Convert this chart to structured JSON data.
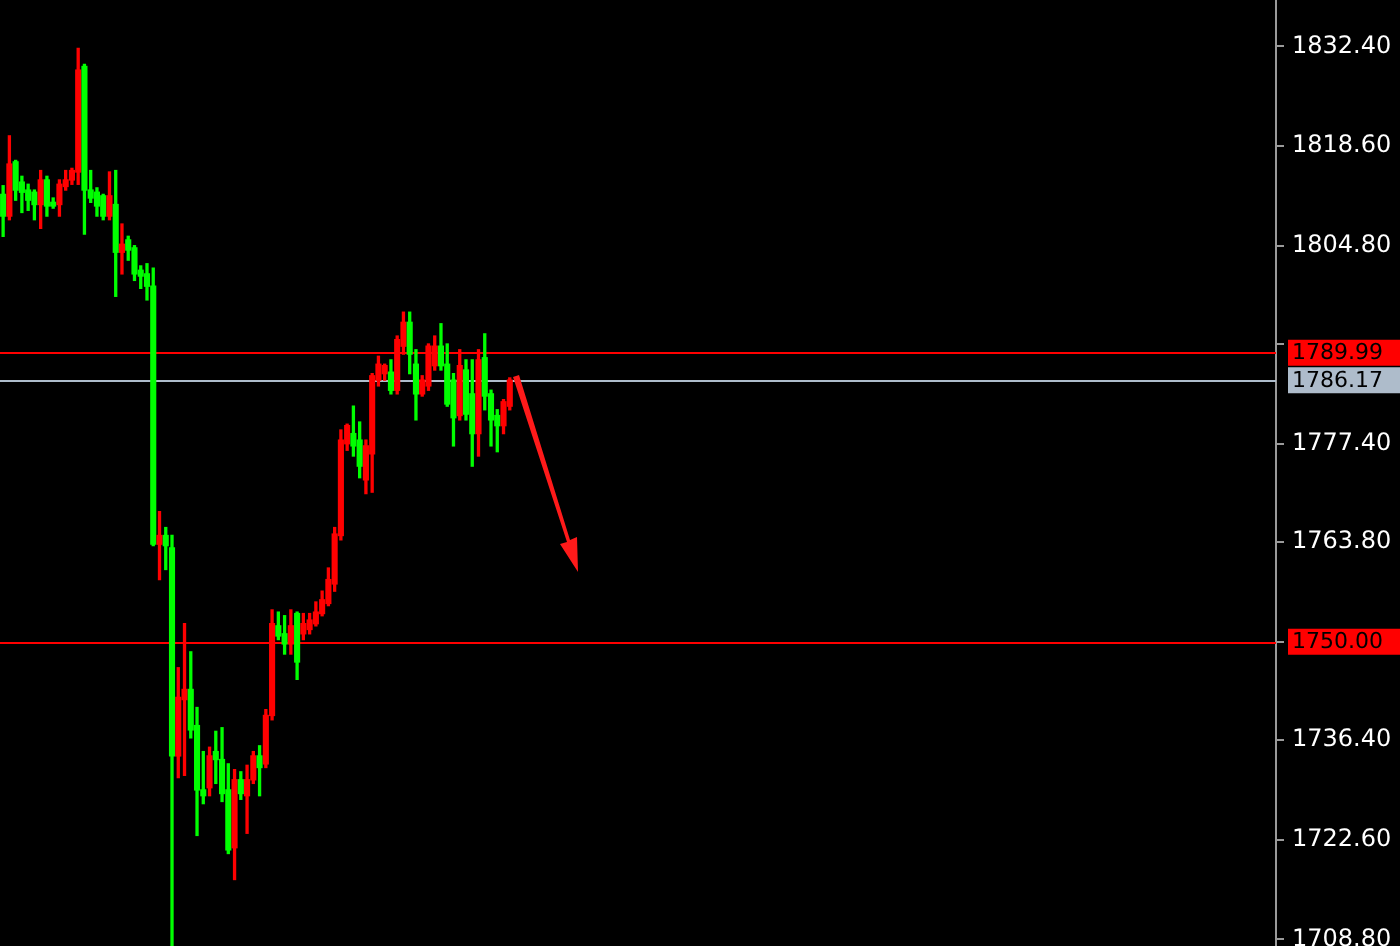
{
  "chart_data": {
    "type": "candlestick",
    "categories": [
      null,
      null,
      null,
      null,
      null,
      null,
      null,
      null,
      null,
      null,
      null,
      null,
      null,
      null,
      null,
      null,
      null,
      null,
      null,
      null,
      null,
      null,
      null,
      null,
      null,
      null,
      null,
      null,
      null,
      null,
      null,
      null,
      null,
      null,
      null,
      null,
      null,
      null,
      null,
      null,
      null,
      null,
      null,
      null,
      null,
      null,
      null,
      null,
      null,
      null,
      null,
      null,
      null,
      null,
      null,
      null,
      null,
      null,
      null,
      null,
      null,
      null,
      null,
      null,
      null,
      null,
      null,
      null,
      null,
      null,
      null,
      null,
      null,
      null,
      null,
      null,
      null,
      null,
      null,
      null,
      null,
      null,
      null,
      null,
      null,
      null,
      null,
      null,
      null,
      null,
      null,
      null,
      null,
      null,
      null,
      null,
      null,
      null,
      null,
      null,
      null,
      null,
      null,
      null,
      null,
      null,
      null,
      null,
      null,
      null,
      null,
      null,
      null,
      null,
      null,
      null,
      null,
      null,
      null,
      null,
      null,
      null,
      null,
      null,
      null,
      null,
      null,
      null,
      null,
      null,
      null,
      null,
      null,
      null,
      null,
      null,
      null,
      null,
      null,
      null,
      null,
      null,
      null,
      null,
      null,
      null,
      null,
      null,
      null,
      null,
      null,
      null,
      null,
      null,
      null,
      null,
      null,
      null,
      null,
      null,
      null,
      null,
      null,
      null,
      null,
      null,
      null,
      null,
      null,
      null,
      null,
      null,
      null,
      null,
      null,
      null,
      null,
      null,
      null,
      null,
      null,
      null,
      null,
      null,
      null,
      null,
      null,
      null,
      null,
      null,
      null,
      null,
      null,
      null,
      null,
      null,
      null,
      null,
      null,
      null,
      null,
      null,
      null,
      null
    ],
    "ohlc": [
      [
        1811.9,
        1813.1,
        1806.1,
        1808.9
      ],
      [
        1808.9,
        1820.0,
        1808.4,
        1816.1
      ],
      [
        1816.4,
        1816.6,
        1811.1,
        1812.5
      ],
      [
        1813.6,
        1814.4,
        1809.4,
        1812.2
      ],
      [
        1812.5,
        1813.3,
        1809.7,
        1811.1
      ],
      [
        1812.2,
        1812.5,
        1808.4,
        1810.5
      ],
      [
        1810.5,
        1815.2,
        1807.2,
        1813.9
      ],
      [
        1813.9,
        1814.4,
        1808.9,
        1810.3
      ],
      [
        1810.8,
        1811.4,
        1810.0,
        1810.3
      ],
      [
        1810.5,
        1813.9,
        1808.9,
        1813.3
      ],
      [
        1813.0,
        1815.2,
        1812.5,
        1813.9
      ],
      [
        1813.9,
        1815.5,
        1813.3,
        1815.2
      ],
      [
        1815.0,
        1832.1,
        1813.3,
        1829.1
      ],
      [
        1829.6,
        1829.9,
        1806.4,
        1812.5
      ],
      [
        1812.5,
        1815.2,
        1810.8,
        1811.4
      ],
      [
        1812.2,
        1812.8,
        1808.9,
        1810.3
      ],
      [
        1811.7,
        1811.9,
        1808.4,
        1808.9
      ],
      [
        1808.9,
        1815.0,
        1808.4,
        1811.7
      ],
      [
        1810.5,
        1815.2,
        1797.8,
        1803.9
      ],
      [
        1803.9,
        1807.8,
        1800.9,
        1805.0
      ],
      [
        1805.6,
        1806.1,
        1802.8,
        1804.2
      ],
      [
        1804.5,
        1804.8,
        1800.0,
        1800.9
      ],
      [
        1801.4,
        1802.0,
        1798.9,
        1800.6
      ],
      [
        1800.9,
        1802.3,
        1797.3,
        1799.2
      ],
      [
        1799.2,
        1801.7,
        1763.3,
        1763.5
      ],
      [
        1763.5,
        1768.0,
        1758.6,
        1764.7
      ],
      [
        1764.7,
        1765.8,
        1760.0,
        1763.3
      ],
      [
        1763.0,
        1764.7,
        1708.0,
        1734.2
      ],
      [
        1734.2,
        1746.4,
        1731.2,
        1742.3
      ],
      [
        1742.0,
        1752.5,
        1731.5,
        1743.4
      ],
      [
        1743.4,
        1748.6,
        1736.7,
        1737.8
      ],
      [
        1738.4,
        1740.9,
        1723.2,
        1729.5
      ],
      [
        1729.5,
        1734.8,
        1727.6,
        1728.7
      ],
      [
        1729.8,
        1735.4,
        1728.7,
        1734.2
      ],
      [
        1734.8,
        1737.6,
        1730.4,
        1733.7
      ],
      [
        1733.7,
        1738.1,
        1727.9,
        1729.0
      ],
      [
        1729.5,
        1733.1,
        1720.7,
        1721.2
      ],
      [
        1721.5,
        1732.3,
        1717.1,
        1730.9
      ],
      [
        1730.9,
        1732.0,
        1728.2,
        1729.0
      ],
      [
        1728.7,
        1732.9,
        1723.5,
        1730.9
      ],
      [
        1730.9,
        1734.8,
        1730.4,
        1734.2
      ],
      [
        1734.2,
        1735.6,
        1728.7,
        1732.6
      ],
      [
        1733.1,
        1740.6,
        1732.6,
        1739.8
      ],
      [
        1739.8,
        1754.4,
        1739.2,
        1752.5
      ],
      [
        1752.2,
        1754.1,
        1750.3,
        1750.8
      ],
      [
        1751.1,
        1753.6,
        1748.3,
        1749.7
      ],
      [
        1749.7,
        1754.4,
        1748.3,
        1752.2
      ],
      [
        1753.9,
        1754.1,
        1744.8,
        1747.2
      ],
      [
        1751.1,
        1753.9,
        1750.3,
        1752.5
      ],
      [
        1751.7,
        1753.9,
        1751.1,
        1753.0
      ],
      [
        1752.5,
        1755.5,
        1752.2,
        1754.1
      ],
      [
        1753.9,
        1757.0,
        1753.6,
        1755.8
      ],
      [
        1755.3,
        1760.2,
        1755.0,
        1758.6
      ],
      [
        1758.0,
        1765.8,
        1757.0,
        1764.9
      ],
      [
        1764.7,
        1779.3,
        1764.1,
        1777.9
      ],
      [
        1777.4,
        1780.1,
        1776.5,
        1779.9
      ],
      [
        1778.8,
        1782.6,
        1775.7,
        1777.1
      ],
      [
        1777.9,
        1780.4,
        1772.7,
        1774.3
      ],
      [
        1772.4,
        1777.9,
        1770.5,
        1777.1
      ],
      [
        1776.0,
        1787.1,
        1770.7,
        1786.8
      ],
      [
        1786.2,
        1789.5,
        1785.4,
        1788.4
      ],
      [
        1787.1,
        1788.4,
        1786.2,
        1788.2
      ],
      [
        1787.3,
        1789.0,
        1784.3,
        1784.8
      ],
      [
        1784.8,
        1792.3,
        1784.3,
        1791.8
      ],
      [
        1790.9,
        1795.6,
        1789.8,
        1794.2
      ],
      [
        1794.2,
        1795.6,
        1787.1,
        1789.8
      ],
      [
        1788.4,
        1790.4,
        1780.7,
        1784.3
      ],
      [
        1784.3,
        1786.8,
        1784.0,
        1786.2
      ],
      [
        1785.4,
        1791.2,
        1784.8,
        1790.9
      ],
      [
        1788.2,
        1792.3,
        1787.6,
        1790.9
      ],
      [
        1790.9,
        1794.0,
        1787.6,
        1788.2
      ],
      [
        1788.4,
        1791.2,
        1782.6,
        1782.9
      ],
      [
        1786.2,
        1787.1,
        1777.1,
        1781.0
      ],
      [
        1781.3,
        1790.4,
        1780.7,
        1788.2
      ],
      [
        1787.6,
        1789.0,
        1780.7,
        1781.5
      ],
      [
        1784.3,
        1789.0,
        1774.3,
        1778.8
      ],
      [
        1778.8,
        1790.4,
        1775.7,
        1789.0
      ],
      [
        1789.3,
        1792.6,
        1782.1,
        1784.0
      ],
      [
        1784.3,
        1784.8,
        1777.1,
        1780.7
      ],
      [
        1781.3,
        1782.1,
        1776.3,
        1779.9
      ],
      [
        1779.9,
        1783.5,
        1778.8,
        1783.2
      ],
      [
        1782.6,
        1786.5,
        1782.1,
        1786.2
      ],
      null,
      null,
      null,
      null,
      null,
      null,
      null,
      null,
      null,
      null,
      null,
      null,
      null,
      null,
      null,
      null,
      null,
      null,
      null,
      null,
      null,
      null,
      null,
      null,
      null,
      null,
      null,
      null,
      null,
      null,
      null,
      null,
      null,
      null,
      null,
      null,
      null,
      null,
      null,
      null,
      null,
      null,
      null,
      null,
      null,
      null,
      null,
      null,
      null,
      null,
      null,
      null,
      null,
      null,
      null,
      null,
      null,
      null,
      null,
      null,
      null,
      null,
      null,
      null,
      null,
      null,
      null,
      null,
      null,
      null,
      null,
      null,
      null,
      null,
      null,
      null,
      null,
      null,
      null,
      null,
      null,
      null,
      null,
      null,
      null,
      null,
      null,
      null,
      null,
      null,
      null,
      null,
      null,
      null,
      null,
      null,
      null,
      null,
      null,
      null,
      null,
      null,
      null,
      null,
      null,
      null,
      null,
      null,
      null,
      null,
      null,
      null,
      null,
      null,
      null,
      null,
      null,
      null,
      null,
      null,
      null,
      null
    ],
    "colors": [
      "#00ff00",
      "#ff0000",
      "#00ff00",
      "#00ff00",
      "#00ff00",
      "#00ff00",
      "#ff0000",
      "#00ff00",
      "#00ff00",
      "#ff0000",
      "#ff0000",
      "#ff0000",
      "#ff0000",
      "#00ff00",
      "#00ff00",
      "#00ff00",
      "#00ff00",
      "#ff0000",
      "#00ff00",
      "#ff0000",
      "#00ff00",
      "#00ff00",
      "#00ff00",
      "#00ff00",
      "#00ff00",
      "#ff0000",
      "#00ff00",
      "#00ff00",
      "#ff0000",
      "#ff0000",
      "#00ff00",
      "#00ff00",
      "#00ff00",
      "#ff0000",
      "#00ff00",
      "#00ff00",
      "#00ff00",
      "#ff0000",
      "#00ff00",
      "#ff0000",
      "#ff0000",
      "#00ff00",
      "#ff0000",
      "#ff0000",
      "#00ff00",
      "#00ff00",
      "#ff0000",
      "#00ff00",
      "#ff0000",
      "#ff0000",
      "#ff0000",
      "#ff0000",
      "#ff0000",
      "#ff0000",
      "#ff0000",
      "#ff0000",
      "#00ff00",
      "#00ff00",
      "#ff0000",
      "#ff0000",
      "#ff0000",
      "#ff0000",
      "#00ff00",
      "#ff0000",
      "#ff0000",
      "#00ff00",
      "#00ff00",
      "#ff0000",
      "#ff0000",
      "#ff0000",
      "#00ff00",
      "#00ff00",
      "#00ff00",
      "#ff0000",
      "#00ff00",
      "#00ff00",
      "#ff0000",
      "#00ff00",
      "#00ff00",
      "#00ff00",
      "#ff0000",
      "#ff0000",
      null,
      null,
      null,
      null,
      null,
      null,
      null,
      null,
      null,
      null,
      null,
      null,
      null,
      null,
      null,
      null,
      null,
      null,
      null,
      null,
      null,
      null,
      null,
      null,
      null,
      null,
      null,
      null,
      null,
      null,
      null,
      null,
      null,
      null,
      null,
      null,
      null,
      null,
      null,
      null,
      null,
      null,
      null,
      null,
      null,
      null,
      null,
      null,
      null,
      null,
      null,
      null,
      null,
      null,
      null,
      null,
      null,
      null,
      null,
      null,
      null,
      null,
      null,
      null,
      null,
      null,
      null,
      null,
      null,
      null,
      null,
      null,
      null,
      null,
      null,
      null,
      null,
      null,
      null,
      null,
      null,
      null,
      null,
      null,
      null,
      null,
      null,
      null,
      null,
      null,
      null,
      null,
      null,
      null,
      null,
      null,
      null,
      null,
      null,
      null,
      null,
      null,
      null,
      null,
      null,
      null,
      null,
      null,
      null,
      null,
      null,
      null,
      null,
      null,
      null,
      null,
      null,
      null,
      null,
      null,
      null,
      null
    ],
    "ylim": [
      1707.9,
      1838.8
    ],
    "yticks": [
      {
        "value": 1708.8,
        "label": "1708.80"
      },
      {
        "value": 1722.6,
        "label": "1722.60"
      },
      {
        "value": 1736.4,
        "label": "1736.40"
      },
      {
        "value": 1750,
        "label": null
      },
      {
        "value": 1763.8,
        "label": "1763.80"
      },
      {
        "value": 1777.4,
        "label": "1777.40"
      },
      {
        "value": 1791.2,
        "label": null
      },
      {
        "value": 1804.8,
        "label": "1804.80"
      },
      {
        "value": 1818.6,
        "label": "1818.60"
      },
      {
        "value": 1832.4,
        "label": "1832.40"
      }
    ],
    "ref_lines": [
      {
        "axis": "y",
        "value": 1789.99,
        "label": "1789.99",
        "color": "#ff0000"
      },
      {
        "axis": "y",
        "value": 1786.17,
        "label": "1786.17",
        "color": "#aebccb"
      },
      {
        "axis": "y",
        "value": 1750,
        "label": "1750.00",
        "color": "#ff0000"
      }
    ],
    "tick_labels": "y"
  }
}
